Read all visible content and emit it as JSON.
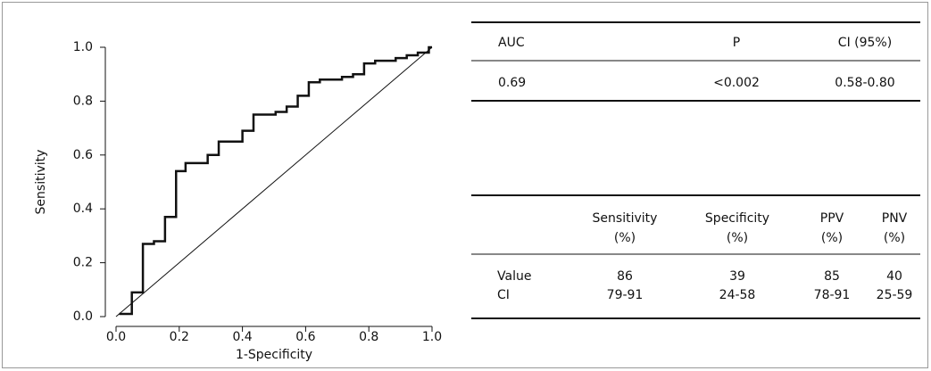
{
  "chart_data": {
    "type": "line",
    "xlabel": "1-Specificity",
    "ylabel": "Sensitivity",
    "xlim": [
      0,
      1
    ],
    "ylim": [
      0,
      1
    ],
    "xticks": [
      {
        "value": 0,
        "label": "0.0"
      },
      0.2,
      0.4,
      0.6,
      0.8,
      {
        "value": 1,
        "label": "1.0"
      }
    ],
    "yticks": [
      {
        "value": 0,
        "label": "0.0"
      },
      0.2,
      0.4,
      0.6,
      0.8,
      {
        "value": 1,
        "label": "1.0"
      }
    ],
    "series": [
      {
        "color": "#111111",
        "x": [
          0.01,
          0.05,
          0.05,
          0.085,
          0.085,
          0.12,
          0.12,
          0.155,
          0.155,
          0.19,
          0.19,
          0.22,
          0.22,
          0.29,
          0.29,
          0.325,
          0.325,
          0.4,
          0.4,
          0.435,
          0.435,
          0.505,
          0.505,
          0.54,
          0.54,
          0.575,
          0.575,
          0.61,
          0.61,
          0.645,
          0.645,
          0.715,
          0.715,
          0.75,
          0.75,
          0.785,
          0.785,
          0.82,
          0.82,
          0.885,
          0.885,
          0.92,
          0.92,
          0.955,
          0.955,
          0.99,
          0.99,
          1.0
        ],
        "values": [
          0.01,
          0.01,
          0.09,
          0.09,
          0.27,
          0.27,
          0.28,
          0.28,
          0.37,
          0.37,
          0.54,
          0.54,
          0.57,
          0.57,
          0.6,
          0.6,
          0.65,
          0.65,
          0.69,
          0.69,
          0.75,
          0.75,
          0.76,
          0.76,
          0.78,
          0.78,
          0.82,
          0.82,
          0.87,
          0.87,
          0.88,
          0.88,
          0.89,
          0.89,
          0.9,
          0.9,
          0.94,
          0.94,
          0.95,
          0.95,
          0.96,
          0.96,
          0.97,
          0.97,
          0.98,
          0.98,
          1.0,
          1.0
        ]
      },
      {
        "color": "#111111",
        "x": [
          0,
          1
        ],
        "values": [
          0,
          1
        ]
      }
    ]
  },
  "auc_table": {
    "columns": [
      "AUC",
      "P",
      "CI (95%)"
    ],
    "rows": [
      [
        "0.69",
        "<0.002",
        "0.58-0.80"
      ]
    ]
  },
  "metrics_table": {
    "columns": [
      [
        "Sensitivity",
        "(%)"
      ],
      [
        "Specificity",
        "(%)"
      ],
      [
        "PPV",
        "(%)"
      ],
      [
        "PNV",
        "(%)"
      ]
    ],
    "rows": [
      {
        "label": "Value",
        "values": [
          "86",
          "39",
          "85",
          "40"
        ]
      },
      {
        "label": "CI",
        "values": [
          "79-91",
          "24-58",
          "78-91",
          "25-59"
        ]
      }
    ]
  }
}
